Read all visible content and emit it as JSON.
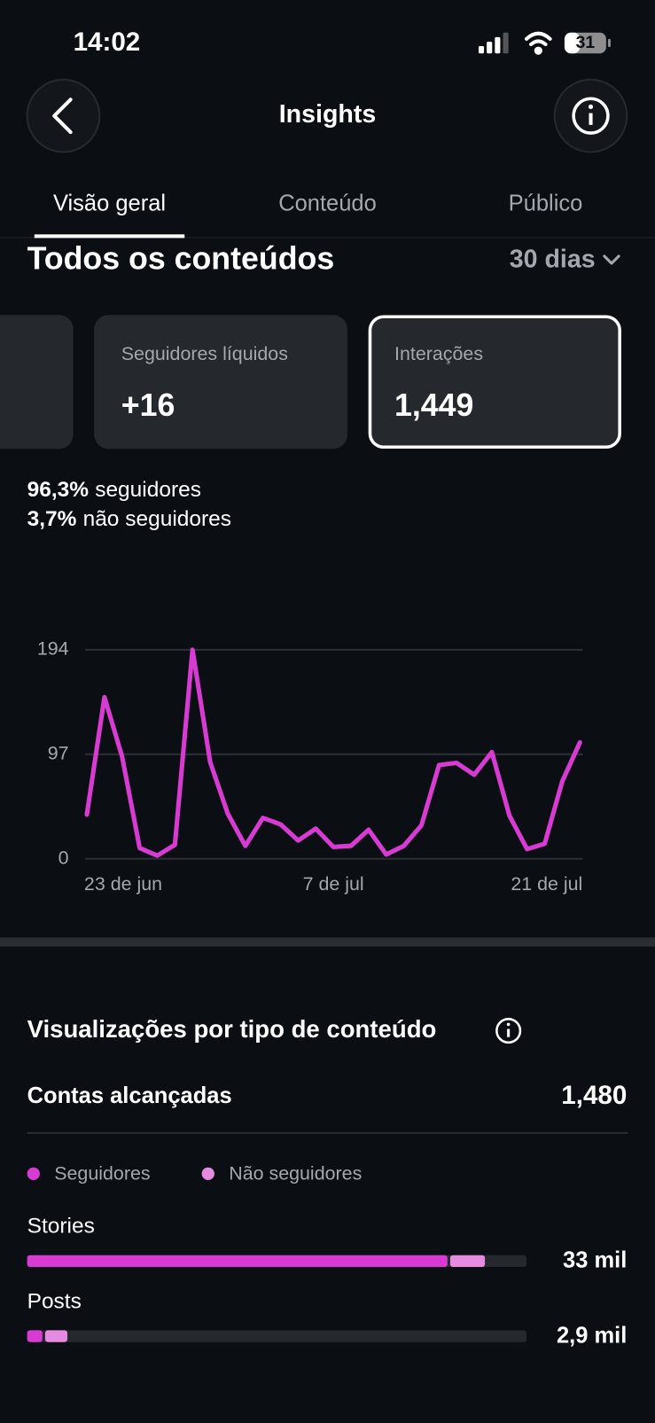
{
  "status_bar": {
    "time": "14:02",
    "battery": "31"
  },
  "header": {
    "title": "Insights"
  },
  "tabs": [
    "Visão geral",
    "Conteúdo",
    "Público"
  ],
  "section": {
    "title": "Todos os conteúdos",
    "period": "30 dias"
  },
  "cards": [
    {
      "label": "Seguidores líquidos",
      "value": "+16"
    },
    {
      "label": "Interações",
      "value": "1,449"
    }
  ],
  "audience_split": [
    {
      "share": "96,3%",
      "label": "seguidores"
    },
    {
      "share": "3,7%",
      "label": "não seguidores"
    }
  ],
  "chart_data": {
    "type": "line",
    "categories": [
      "23 de jun",
      null,
      null,
      null,
      null,
      null,
      null,
      null,
      null,
      null,
      null,
      null,
      null,
      null,
      "7 de jul",
      null,
      null,
      null,
      null,
      null,
      null,
      null,
      null,
      null,
      null,
      null,
      null,
      null,
      "21 de jul"
    ],
    "series": [
      {
        "color": "#d83bd2",
        "values": [
          41,
          150,
          95,
          10,
          3,
          13,
          194,
          90,
          42,
          12,
          38,
          32,
          17,
          28,
          11,
          12,
          27,
          4,
          12,
          31,
          87,
          89,
          78,
          99,
          40,
          9,
          14,
          72,
          108
        ]
      }
    ],
    "ylim": [
      0,
      194
    ],
    "yticks": [
      0,
      97,
      194
    ],
    "grid": true
  },
  "views": {
    "title": "Visualizações por tipo de conteúdo",
    "reach_label": "Contas alcançadas",
    "reach_value": "1,480",
    "legend": [
      {
        "name": "Seguidores",
        "color": "#d83bd2"
      },
      {
        "name": "Não seguidores",
        "color": "#e78ae2"
      }
    ],
    "rows": [
      {
        "label": "Stories",
        "value": 33000,
        "value_label": "33 mil",
        "followers": 30300,
        "non_followers": 2700
      },
      {
        "label": "Posts",
        "value": 2900,
        "value_label": "2,9 mil",
        "followers": 1100,
        "non_followers": 1800
      }
    ]
  }
}
